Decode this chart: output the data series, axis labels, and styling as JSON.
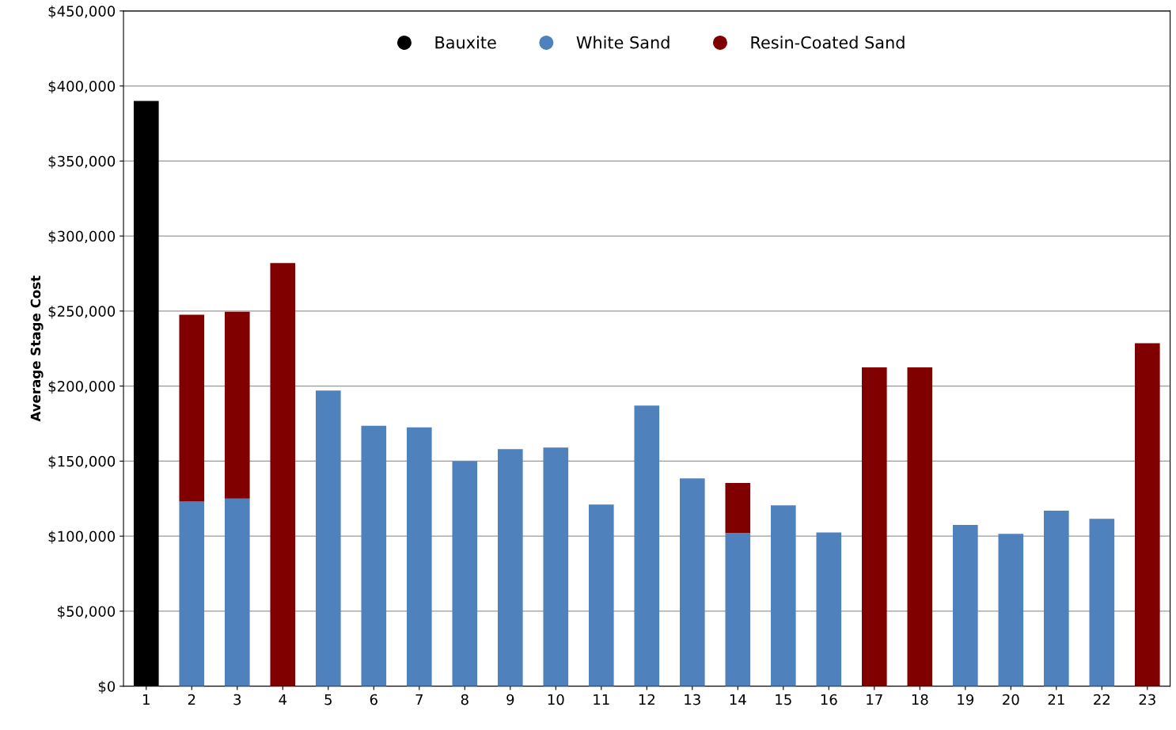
{
  "chart_data": {
    "type": "bar",
    "stacked": true,
    "ylabel": "Average Stage Cost",
    "categories": [
      "1",
      "2",
      "3",
      "4",
      "5",
      "6",
      "7",
      "8",
      "9",
      "10",
      "11",
      "12",
      "13",
      "14",
      "15",
      "16",
      "17",
      "18",
      "19",
      "20",
      "21",
      "22",
      "23"
    ],
    "series": [
      {
        "name": "Bauxite",
        "color": "#000000",
        "values": [
          390000,
          0,
          0,
          0,
          0,
          0,
          0,
          0,
          0,
          0,
          0,
          0,
          0,
          0,
          0,
          0,
          0,
          0,
          0,
          0,
          0,
          0,
          0
        ]
      },
      {
        "name": "White Sand",
        "color": "#4f81bd",
        "values": [
          0,
          123000,
          125000,
          0,
          197000,
          173500,
          172500,
          150000,
          158000,
          159000,
          121000,
          187000,
          138500,
          102000,
          120500,
          102500,
          0,
          0,
          107500,
          101500,
          117000,
          111500,
          0
        ]
      },
      {
        "name": "Resin-Coated Sand",
        "color": "#800000",
        "values": [
          0,
          124500,
          124500,
          282000,
          0,
          0,
          0,
          0,
          0,
          0,
          0,
          0,
          0,
          33500,
          0,
          0,
          212500,
          212500,
          0,
          0,
          0,
          0,
          228500
        ]
      }
    ],
    "ylim": [
      0,
      450000
    ],
    "yticks": [
      {
        "value": 0,
        "label": "$0"
      },
      {
        "value": 50000,
        "label": "$50,000"
      },
      {
        "value": 100000,
        "label": "$100,000"
      },
      {
        "value": 150000,
        "label": "$150,000"
      },
      {
        "value": 200000,
        "label": "$200,000"
      },
      {
        "value": 250000,
        "label": "$250,000"
      },
      {
        "value": 300000,
        "label": "$300,000"
      },
      {
        "value": 350000,
        "label": "$350,000"
      },
      {
        "value": 400000,
        "label": "$400,000"
      },
      {
        "value": 450000,
        "label": "$450,000"
      }
    ],
    "grid": "y",
    "legend": "top",
    "marker": "circle"
  }
}
